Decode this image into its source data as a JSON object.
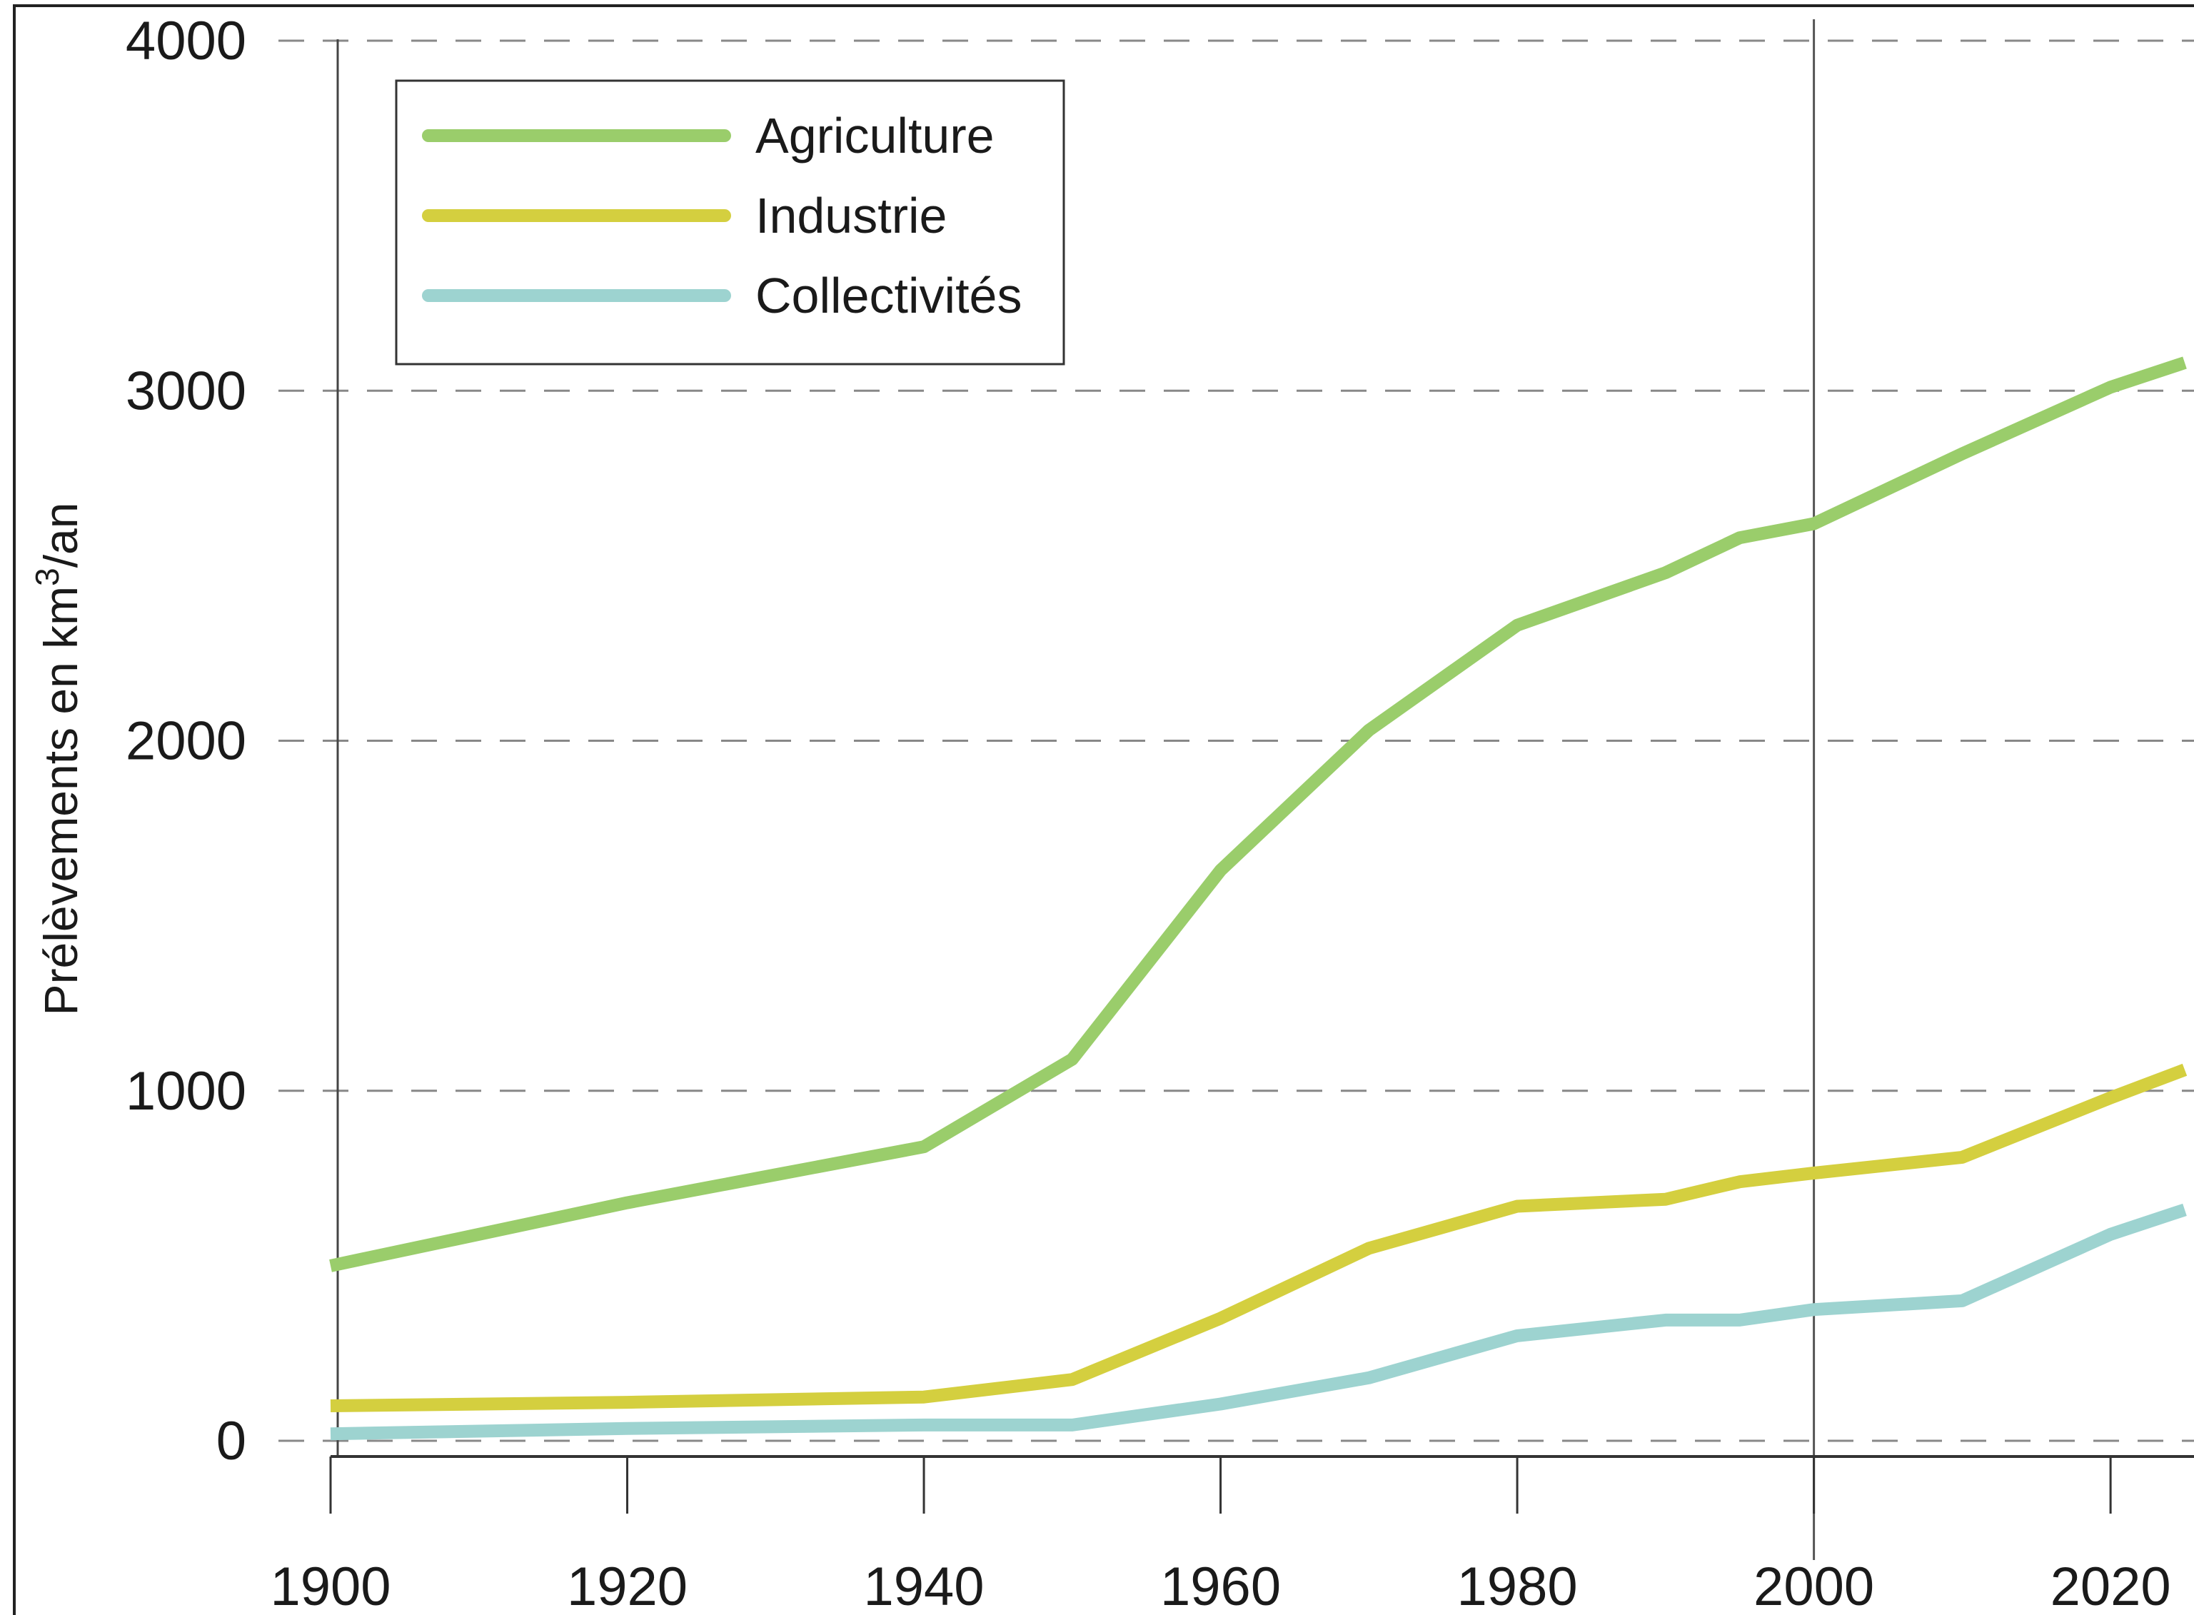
{
  "chart_data": {
    "type": "line",
    "title": "",
    "xlabel": "",
    "ylabel": "Prélèvements en km",
    "ylabel_superscript": "3",
    "ylabel_suffix": "/an",
    "xlim": [
      1900,
      2025
    ],
    "ylim": [
      0,
      4000
    ],
    "x_ticks": [
      1900,
      1920,
      1940,
      1960,
      1980,
      2000,
      2020
    ],
    "y_ticks": [
      0,
      1000,
      2000,
      3000,
      4000
    ],
    "x_tick_labels": [
      "1900",
      "1920",
      "1940",
      "1960",
      "1980",
      "2000",
      "2020"
    ],
    "y_tick_labels": [
      "0",
      "1000",
      "2000",
      "3000",
      "4000"
    ],
    "grid": "horizontal dashed",
    "vertical_reference_lines": [
      2000
    ],
    "legend_position": "top-left",
    "series": [
      {
        "name": "Agriculture",
        "color": "#9acd6b",
        "x": [
          1900,
          1910,
          1920,
          1930,
          1940,
          1950,
          1960,
          1970,
          1980,
          1990,
          1995,
          2000,
          2010,
          2020,
          2025
        ],
        "values": [
          500,
          590,
          680,
          760,
          840,
          1090,
          1630,
          2030,
          2330,
          2480,
          2580,
          2620,
          2820,
          3010,
          3080
        ]
      },
      {
        "name": "Industrie",
        "color": "#d4cf3f",
        "x": [
          1900,
          1920,
          1940,
          1950,
          1960,
          1970,
          1980,
          1990,
          1995,
          2000,
          2010,
          2020,
          2025
        ],
        "values": [
          100,
          110,
          125,
          175,
          350,
          550,
          670,
          690,
          740,
          765,
          810,
          980,
          1060
        ]
      },
      {
        "name": "Collectivités",
        "color": "#9dd3d0",
        "x": [
          1900,
          1920,
          1940,
          1950,
          1960,
          1970,
          1980,
          1990,
          1995,
          2000,
          2010,
          2020,
          2025
        ],
        "values": [
          20,
          35,
          45,
          45,
          105,
          180,
          300,
          345,
          345,
          375,
          400,
          590,
          660
        ]
      }
    ]
  }
}
